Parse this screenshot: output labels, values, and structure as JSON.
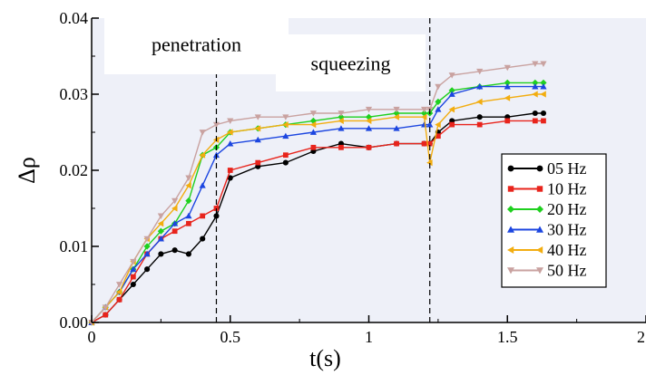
{
  "chart_data": {
    "type": "line",
    "xlabel": "t(s)",
    "ylabel": "Δρ",
    "xlim": [
      0,
      2
    ],
    "ylim": [
      0,
      0.04
    ],
    "xticks": [
      0,
      0.5,
      1,
      1.5,
      2
    ],
    "xtick_labels": [
      "0",
      "0.5",
      "1",
      "1.5",
      "2"
    ],
    "yticks": [
      0,
      0.01,
      0.02,
      0.03,
      0.04
    ],
    "ytick_labels": [
      "0.00",
      "0.01",
      "0.02",
      "0.03",
      "0.04"
    ],
    "grid": false,
    "legend_position": "right",
    "annotations": [
      {
        "text": "penetration",
        "x": 0.2
      },
      {
        "text": "squeezing",
        "x": 0.85
      }
    ],
    "vlines": [
      0.45,
      1.22
    ],
    "series": [
      {
        "name": "05 Hz",
        "color": "#000000",
        "marker": "circle",
        "x": [
          0,
          0.05,
          0.1,
          0.15,
          0.2,
          0.25,
          0.3,
          0.35,
          0.4,
          0.45,
          0.5,
          0.6,
          0.7,
          0.8,
          0.9,
          1.0,
          1.1,
          1.2,
          1.22,
          1.25,
          1.3,
          1.4,
          1.5,
          1.6,
          1.63
        ],
        "y": [
          0,
          0.001,
          0.003,
          0.005,
          0.007,
          0.009,
          0.0095,
          0.009,
          0.011,
          0.014,
          0.019,
          0.0205,
          0.021,
          0.0225,
          0.0235,
          0.023,
          0.0235,
          0.0235,
          0.0235,
          0.025,
          0.0265,
          0.027,
          0.027,
          0.0275,
          0.0275
        ]
      },
      {
        "name": "10 Hz",
        "color": "#e8241c",
        "marker": "square",
        "x": [
          0,
          0.05,
          0.1,
          0.15,
          0.2,
          0.25,
          0.3,
          0.35,
          0.4,
          0.45,
          0.5,
          0.6,
          0.7,
          0.8,
          0.9,
          1.0,
          1.1,
          1.2,
          1.22,
          1.25,
          1.3,
          1.4,
          1.5,
          1.6,
          1.63
        ],
        "y": [
          0,
          0.001,
          0.003,
          0.006,
          0.009,
          0.011,
          0.012,
          0.013,
          0.014,
          0.015,
          0.02,
          0.021,
          0.022,
          0.023,
          0.023,
          0.023,
          0.0235,
          0.0235,
          0.0235,
          0.0245,
          0.026,
          0.026,
          0.0265,
          0.0265,
          0.0265
        ]
      },
      {
        "name": "20 Hz",
        "color": "#1fd01f",
        "marker": "diamond",
        "x": [
          0,
          0.05,
          0.1,
          0.15,
          0.2,
          0.25,
          0.3,
          0.35,
          0.4,
          0.45,
          0.5,
          0.6,
          0.7,
          0.8,
          0.9,
          1.0,
          1.1,
          1.2,
          1.22,
          1.25,
          1.3,
          1.4,
          1.5,
          1.6,
          1.63
        ],
        "y": [
          0,
          0.002,
          0.004,
          0.007,
          0.01,
          0.012,
          0.013,
          0.016,
          0.022,
          0.023,
          0.025,
          0.0255,
          0.026,
          0.0265,
          0.027,
          0.027,
          0.0275,
          0.0275,
          0.0275,
          0.029,
          0.0305,
          0.031,
          0.0315,
          0.0315,
          0.0315
        ]
      },
      {
        "name": "30 Hz",
        "color": "#1c46e0",
        "marker": "triangle-up",
        "x": [
          0,
          0.05,
          0.1,
          0.15,
          0.2,
          0.25,
          0.3,
          0.35,
          0.4,
          0.45,
          0.5,
          0.6,
          0.7,
          0.8,
          0.9,
          1.0,
          1.1,
          1.2,
          1.22,
          1.25,
          1.3,
          1.4,
          1.5,
          1.6,
          1.63
        ],
        "y": [
          0,
          0.002,
          0.004,
          0.007,
          0.009,
          0.011,
          0.013,
          0.014,
          0.018,
          0.022,
          0.0235,
          0.024,
          0.0245,
          0.025,
          0.0255,
          0.0255,
          0.0255,
          0.026,
          0.026,
          0.028,
          0.03,
          0.031,
          0.031,
          0.031,
          0.031
        ]
      },
      {
        "name": "40 Hz",
        "color": "#f2ad10",
        "marker": "triangle-left",
        "x": [
          0,
          0.05,
          0.1,
          0.15,
          0.2,
          0.25,
          0.3,
          0.35,
          0.4,
          0.45,
          0.5,
          0.6,
          0.7,
          0.8,
          0.9,
          1.0,
          1.1,
          1.2,
          1.22,
          1.25,
          1.3,
          1.4,
          1.5,
          1.6,
          1.63
        ],
        "y": [
          0,
          0.002,
          0.004,
          0.008,
          0.011,
          0.013,
          0.015,
          0.018,
          0.022,
          0.024,
          0.025,
          0.0255,
          0.026,
          0.026,
          0.0265,
          0.0265,
          0.027,
          0.027,
          0.021,
          0.026,
          0.028,
          0.029,
          0.0295,
          0.03,
          0.03
        ]
      },
      {
        "name": "50 Hz",
        "color": "#c9a2a0",
        "marker": "triangle-down",
        "x": [
          0,
          0.05,
          0.1,
          0.15,
          0.2,
          0.25,
          0.3,
          0.35,
          0.4,
          0.45,
          0.5,
          0.6,
          0.7,
          0.8,
          0.9,
          1.0,
          1.1,
          1.2,
          1.22,
          1.25,
          1.3,
          1.4,
          1.5,
          1.6,
          1.63
        ],
        "y": [
          0,
          0.002,
          0.005,
          0.008,
          0.011,
          0.014,
          0.016,
          0.019,
          0.025,
          0.026,
          0.0265,
          0.027,
          0.027,
          0.0275,
          0.0275,
          0.028,
          0.028,
          0.028,
          0.028,
          0.031,
          0.0325,
          0.033,
          0.0335,
          0.034,
          0.034
        ]
      }
    ]
  }
}
